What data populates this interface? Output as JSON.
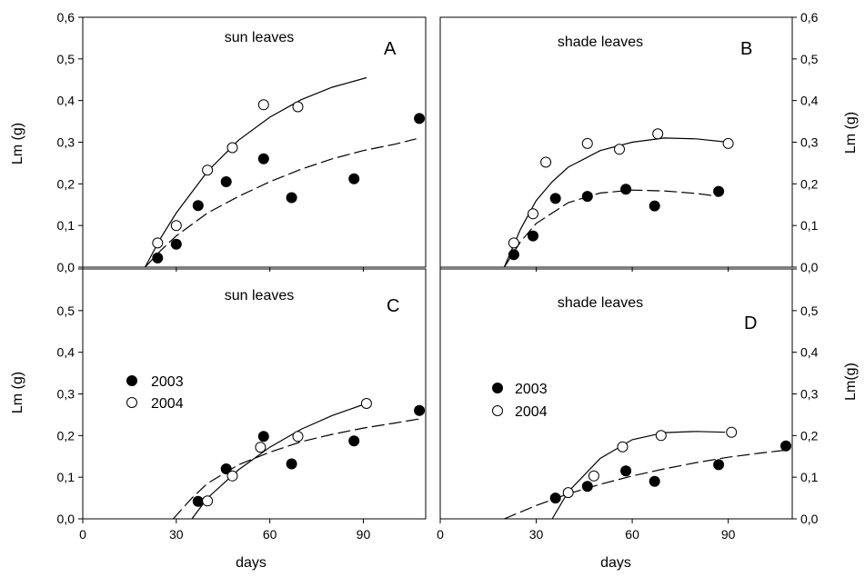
{
  "chart_data": [
    {
      "type": "scatter",
      "panel_label": "A",
      "title": "sun leaves",
      "ylabel": "Lm (g)",
      "xlim": [
        0,
        110
      ],
      "ylim": [
        0,
        0.6
      ],
      "y_axis_side": "left",
      "x_axis_labels": false,
      "series": [
        {
          "name": "2003",
          "marker": "filled-circle",
          "line": "dashed",
          "x": [
            24,
            30,
            37,
            46,
            58,
            67,
            87,
            108
          ],
          "y": [
            0.022,
            0.055,
            0.148,
            0.205,
            0.26,
            0.167,
            0.212,
            0.357
          ],
          "fit_x": [
            20,
            25,
            30,
            40,
            50,
            60,
            70,
            80,
            90,
            100,
            107
          ],
          "fit_y": [
            0.0,
            0.04,
            0.075,
            0.13,
            0.17,
            0.205,
            0.235,
            0.26,
            0.28,
            0.295,
            0.308
          ]
        },
        {
          "name": "2004",
          "marker": "open-circle",
          "line": "solid",
          "x": [
            24,
            30,
            40,
            48,
            58,
            69
          ],
          "y": [
            0.058,
            0.1,
            0.233,
            0.287,
            0.39,
            0.385
          ],
          "fit_x": [
            20,
            25,
            30,
            40,
            50,
            60,
            70,
            80,
            91
          ],
          "fit_y": [
            0.0,
            0.07,
            0.13,
            0.23,
            0.305,
            0.36,
            0.402,
            0.432,
            0.455
          ]
        }
      ]
    },
    {
      "type": "scatter",
      "panel_label": "B",
      "title": "shade leaves",
      "ylabel": "Lm (g)",
      "xlim": [
        0,
        110
      ],
      "ylim": [
        0,
        0.6
      ],
      "y_axis_side": "right",
      "x_axis_labels": false,
      "series": [
        {
          "name": "2003",
          "marker": "filled-circle",
          "line": "dashed",
          "x": [
            23,
            29,
            36,
            46,
            58,
            67,
            87
          ],
          "y": [
            0.03,
            0.075,
            0.165,
            0.17,
            0.187,
            0.147,
            0.182
          ],
          "fit_x": [
            20,
            25,
            30,
            40,
            50,
            60,
            70,
            80,
            87
          ],
          "fit_y": [
            0.0,
            0.06,
            0.105,
            0.155,
            0.178,
            0.185,
            0.183,
            0.177,
            0.17
          ]
        },
        {
          "name": "2004",
          "marker": "open-circle",
          "line": "solid",
          "x": [
            23,
            29,
            33,
            46,
            56,
            68,
            90
          ],
          "y": [
            0.058,
            0.128,
            0.252,
            0.297,
            0.283,
            0.32,
            0.297
          ],
          "fit_x": [
            20,
            25,
            30,
            35,
            40,
            50,
            60,
            70,
            80,
            90
          ],
          "fit_y": [
            0.0,
            0.09,
            0.16,
            0.205,
            0.24,
            0.28,
            0.3,
            0.31,
            0.308,
            0.3
          ]
        }
      ]
    },
    {
      "type": "scatter",
      "panel_label": "C",
      "title": "sun leaves",
      "xlabel": "days",
      "ylabel": "Lm (g)",
      "xlim": [
        0,
        110
      ],
      "xticks": [
        0,
        30,
        60,
        90
      ],
      "ylim": [
        0,
        0.6
      ],
      "y_axis_side": "left",
      "x_axis_labels": true,
      "legend": {
        "position": "left",
        "entries": [
          "2003",
          "2004"
        ]
      },
      "series": [
        {
          "name": "2003",
          "marker": "filled-circle",
          "line": "dashed",
          "x": [
            37,
            46,
            58,
            67,
            87,
            108
          ],
          "y": [
            0.042,
            0.12,
            0.198,
            0.132,
            0.187,
            0.26
          ],
          "fit_x": [
            29,
            35,
            40,
            50,
            60,
            70,
            80,
            90,
            100,
            108
          ],
          "fit_y": [
            0.0,
            0.05,
            0.085,
            0.13,
            0.16,
            0.185,
            0.203,
            0.218,
            0.23,
            0.24
          ]
        },
        {
          "name": "2004",
          "marker": "open-circle",
          "line": "solid",
          "x": [
            40,
            48,
            57,
            69,
            91
          ],
          "y": [
            0.043,
            0.103,
            0.172,
            0.198,
            0.277
          ],
          "fit_x": [
            35,
            40,
            50,
            60,
            70,
            80,
            91
          ],
          "fit_y": [
            0.0,
            0.05,
            0.118,
            0.172,
            0.215,
            0.248,
            0.277
          ]
        }
      ]
    },
    {
      "type": "scatter",
      "panel_label": "D",
      "title": "shade leaves",
      "xlabel": "days",
      "ylabel": "Lm(g)",
      "xlim": [
        0,
        110
      ],
      "xticks": [
        0,
        30,
        60,
        90
      ],
      "ylim": [
        0,
        0.6
      ],
      "y_axis_side": "right",
      "x_axis_labels": true,
      "legend": {
        "position": "left",
        "entries": [
          "2003",
          "2004"
        ]
      },
      "series": [
        {
          "name": "2003",
          "marker": "filled-circle",
          "line": "dashed",
          "x": [
            36,
            46,
            58,
            67,
            87,
            108
          ],
          "y": [
            0.05,
            0.078,
            0.115,
            0.09,
            0.13,
            0.175
          ],
          "fit_x": [
            20,
            30,
            40,
            50,
            60,
            70,
            80,
            90,
            100,
            108
          ],
          "fit_y": [
            0.0,
            0.032,
            0.06,
            0.083,
            0.103,
            0.12,
            0.135,
            0.148,
            0.158,
            0.165
          ]
        },
        {
          "name": "2004",
          "marker": "open-circle",
          "line": "solid",
          "x": [
            40,
            48,
            57,
            69,
            91
          ],
          "y": [
            0.063,
            0.103,
            0.173,
            0.2,
            0.208
          ],
          "fit_x": [
            35,
            40,
            50,
            60,
            70,
            80,
            89
          ],
          "fit_y": [
            0.0,
            0.065,
            0.145,
            0.19,
            0.207,
            0.21,
            0.208
          ]
        }
      ]
    }
  ]
}
